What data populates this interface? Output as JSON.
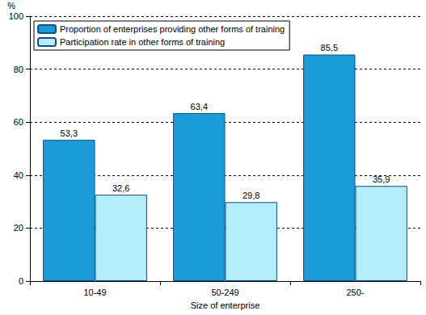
{
  "chart_data": {
    "type": "bar",
    "categories": [
      "10-49",
      "50-249",
      "250-"
    ],
    "series": [
      {
        "name": "Proportion of enterprises providing other forms of training",
        "color": "#1b9bd8",
        "values": [
          53.3,
          63.4,
          85.5
        ],
        "value_labels": [
          "53,3",
          "63,4",
          "85,5"
        ]
      },
      {
        "name": "Participation rate in other forms of training",
        "color": "#b4ecfa",
        "values": [
          32.6,
          29.8,
          35.9
        ],
        "value_labels": [
          "32,6",
          "29,8",
          "35,9"
        ]
      }
    ],
    "xlabel": "Size of enterprise",
    "ylabel": "%",
    "ylim": [
      0,
      100
    ],
    "yticks": [
      0,
      20,
      40,
      60,
      80,
      100
    ],
    "grid": true,
    "legend": "upper left",
    "data_labels": true
  }
}
